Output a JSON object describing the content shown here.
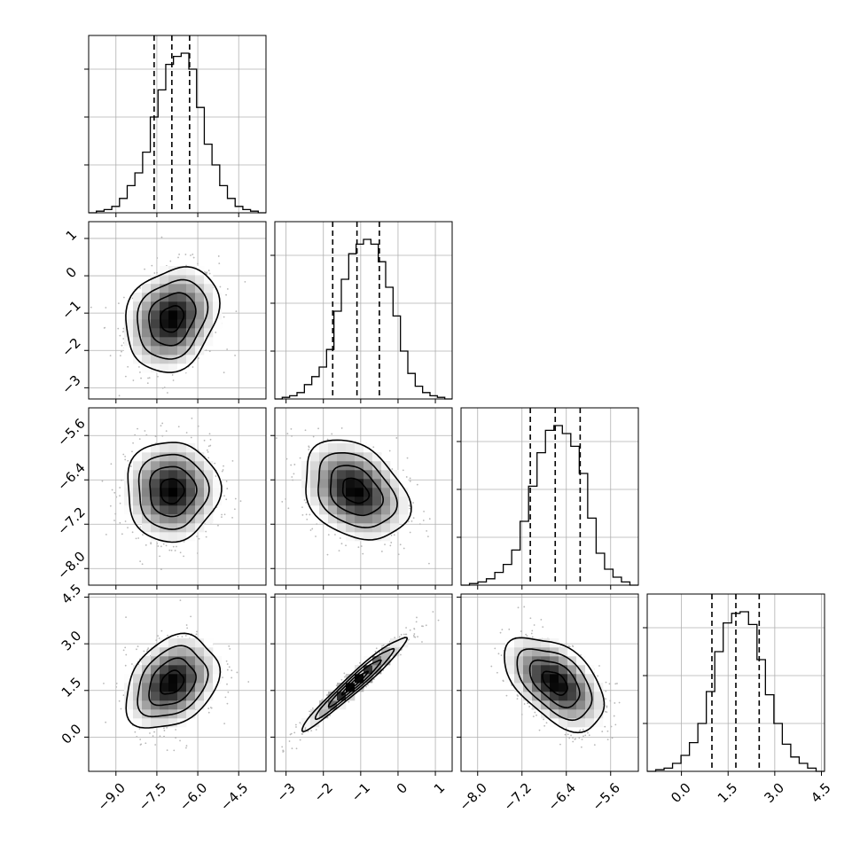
{
  "chart_data": {
    "type": "corner",
    "grid": true,
    "parameters": [
      {
        "axis_ticks": [
          "−9.0",
          "−7.5",
          "−6.0",
          "−4.5"
        ],
        "tick_values": [
          -9.0,
          -7.5,
          -6.0,
          -4.5
        ],
        "range": [
          -10.0,
          -3.5
        ],
        "quantiles": [
          -7.6,
          -6.95,
          -6.3
        ],
        "histogram": [
          0.0,
          0.01,
          0.02,
          0.04,
          0.09,
          0.17,
          0.25,
          0.38,
          0.6,
          0.77,
          0.93,
          0.98,
          1.0,
          0.9,
          0.66,
          0.43,
          0.3,
          0.17,
          0.09,
          0.04,
          0.02,
          0.01,
          0.0
        ]
      },
      {
        "axis_ticks": [
          "−3",
          "−2",
          "−1",
          "0",
          "1"
        ],
        "tick_values": [
          -3,
          -2,
          -1,
          0,
          1
        ],
        "range": [
          -3.3,
          1.45
        ],
        "quantiles": [
          -1.75,
          -1.1,
          -0.5
        ],
        "histogram": [
          0.0,
          0.01,
          0.02,
          0.04,
          0.09,
          0.14,
          0.2,
          0.31,
          0.55,
          0.75,
          0.91,
          0.97,
          1.0,
          0.97,
          0.86,
          0.7,
          0.52,
          0.3,
          0.16,
          0.08,
          0.04,
          0.02,
          0.01,
          0.0
        ]
      },
      {
        "axis_ticks": [
          "−8.0",
          "−7.2",
          "−6.4",
          "−5.6"
        ],
        "tick_values": [
          -8.0,
          -7.2,
          -6.4,
          -5.6
        ],
        "range": [
          -8.3,
          -5.1
        ],
        "quantiles": [
          -7.05,
          -6.6,
          -6.15
        ],
        "histogram": [
          0.0,
          0.01,
          0.02,
          0.04,
          0.08,
          0.13,
          0.22,
          0.4,
          0.62,
          0.83,
          0.97,
          1.0,
          0.95,
          0.87,
          0.7,
          0.42,
          0.2,
          0.1,
          0.05,
          0.02,
          0.0
        ]
      },
      {
        "axis_ticks": [
          "0.0",
          "1.5",
          "3.0",
          "4.5"
        ],
        "tick_values": [
          0.0,
          1.5,
          3.0,
          4.5
        ],
        "range": [
          -1.1,
          4.6
        ],
        "quantiles": [
          0.98,
          1.75,
          2.5
        ],
        "histogram": [
          0.0,
          0.01,
          0.02,
          0.05,
          0.1,
          0.18,
          0.3,
          0.5,
          0.75,
          0.93,
          0.99,
          1.0,
          0.92,
          0.7,
          0.48,
          0.3,
          0.17,
          0.09,
          0.05,
          0.02,
          0.0
        ]
      }
    ],
    "pairs": [
      {
        "x_param": 0,
        "y_param": 1,
        "center": [
          -6.95,
          -1.15
        ],
        "sd": [
          0.85,
          0.7
        ],
        "correlation": 0.2
      },
      {
        "x_param": 0,
        "y_param": 2,
        "center": [
          -6.95,
          -6.6
        ],
        "sd": [
          0.85,
          0.45
        ],
        "correlation": 0.0
      },
      {
        "x_param": 1,
        "y_param": 2,
        "center": [
          -1.15,
          -6.6
        ],
        "sd": [
          0.7,
          0.45
        ],
        "correlation": -0.3
      },
      {
        "x_param": 0,
        "y_param": 3,
        "center": [
          -6.95,
          1.75
        ],
        "sd": [
          0.85,
          0.75
        ],
        "correlation": 0.3
      },
      {
        "x_param": 1,
        "y_param": 3,
        "center": [
          -1.15,
          1.75
        ],
        "sd": [
          0.7,
          0.75
        ],
        "correlation": 0.97
      },
      {
        "x_param": 2,
        "y_param": 3,
        "center": [
          -6.6,
          1.75
        ],
        "sd": [
          0.45,
          0.75
        ],
        "correlation": -0.5
      }
    ]
  }
}
